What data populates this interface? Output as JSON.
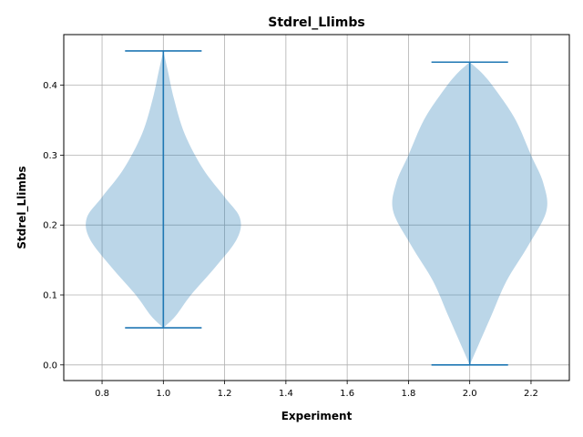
{
  "chart_data": {
    "type": "violin",
    "title": "Stdrel_Llimbs",
    "xlabel": "Experiment",
    "ylabel": "Stdrel_Llimbs",
    "xlim": [
      0.675,
      2.325
    ],
    "ylim": [
      -0.0224,
      0.4724
    ],
    "xticks": [
      0.8,
      1.0,
      1.2,
      1.4,
      1.6,
      1.8,
      2.0,
      2.2
    ],
    "xtick_labels": [
      "0.8",
      "1.0",
      "1.2",
      "1.4",
      "1.6",
      "1.8",
      "2.0",
      "2.2"
    ],
    "yticks": [
      0.0,
      0.1,
      0.2,
      0.3,
      0.4
    ],
    "ytick_labels": [
      "0.0",
      "0.1",
      "0.2",
      "0.3",
      "0.4"
    ],
    "grid": true,
    "colors": {
      "body": "#1f77b4",
      "body_alpha": 0.3,
      "lines": "#1f77b4"
    },
    "violins": [
      {
        "position": 1.0,
        "min": 0.053,
        "max": 0.449,
        "profile": [
          [
            0.053,
            0.0
          ],
          [
            0.07,
            0.04
          ],
          [
            0.1,
            0.09
          ],
          [
            0.14,
            0.17
          ],
          [
            0.18,
            0.24
          ],
          [
            0.21,
            0.25
          ],
          [
            0.24,
            0.2
          ],
          [
            0.28,
            0.13
          ],
          [
            0.33,
            0.07
          ],
          [
            0.38,
            0.035
          ],
          [
            0.42,
            0.015
          ],
          [
            0.449,
            0.0
          ]
        ]
      },
      {
        "position": 2.0,
        "min": 0.0,
        "max": 0.433,
        "profile": [
          [
            0.0,
            0.0
          ],
          [
            0.03,
            0.03
          ],
          [
            0.07,
            0.07
          ],
          [
            0.12,
            0.12
          ],
          [
            0.17,
            0.19
          ],
          [
            0.22,
            0.25
          ],
          [
            0.26,
            0.24
          ],
          [
            0.3,
            0.2
          ],
          [
            0.35,
            0.15
          ],
          [
            0.39,
            0.09
          ],
          [
            0.415,
            0.045
          ],
          [
            0.433,
            0.0
          ]
        ]
      }
    ]
  }
}
